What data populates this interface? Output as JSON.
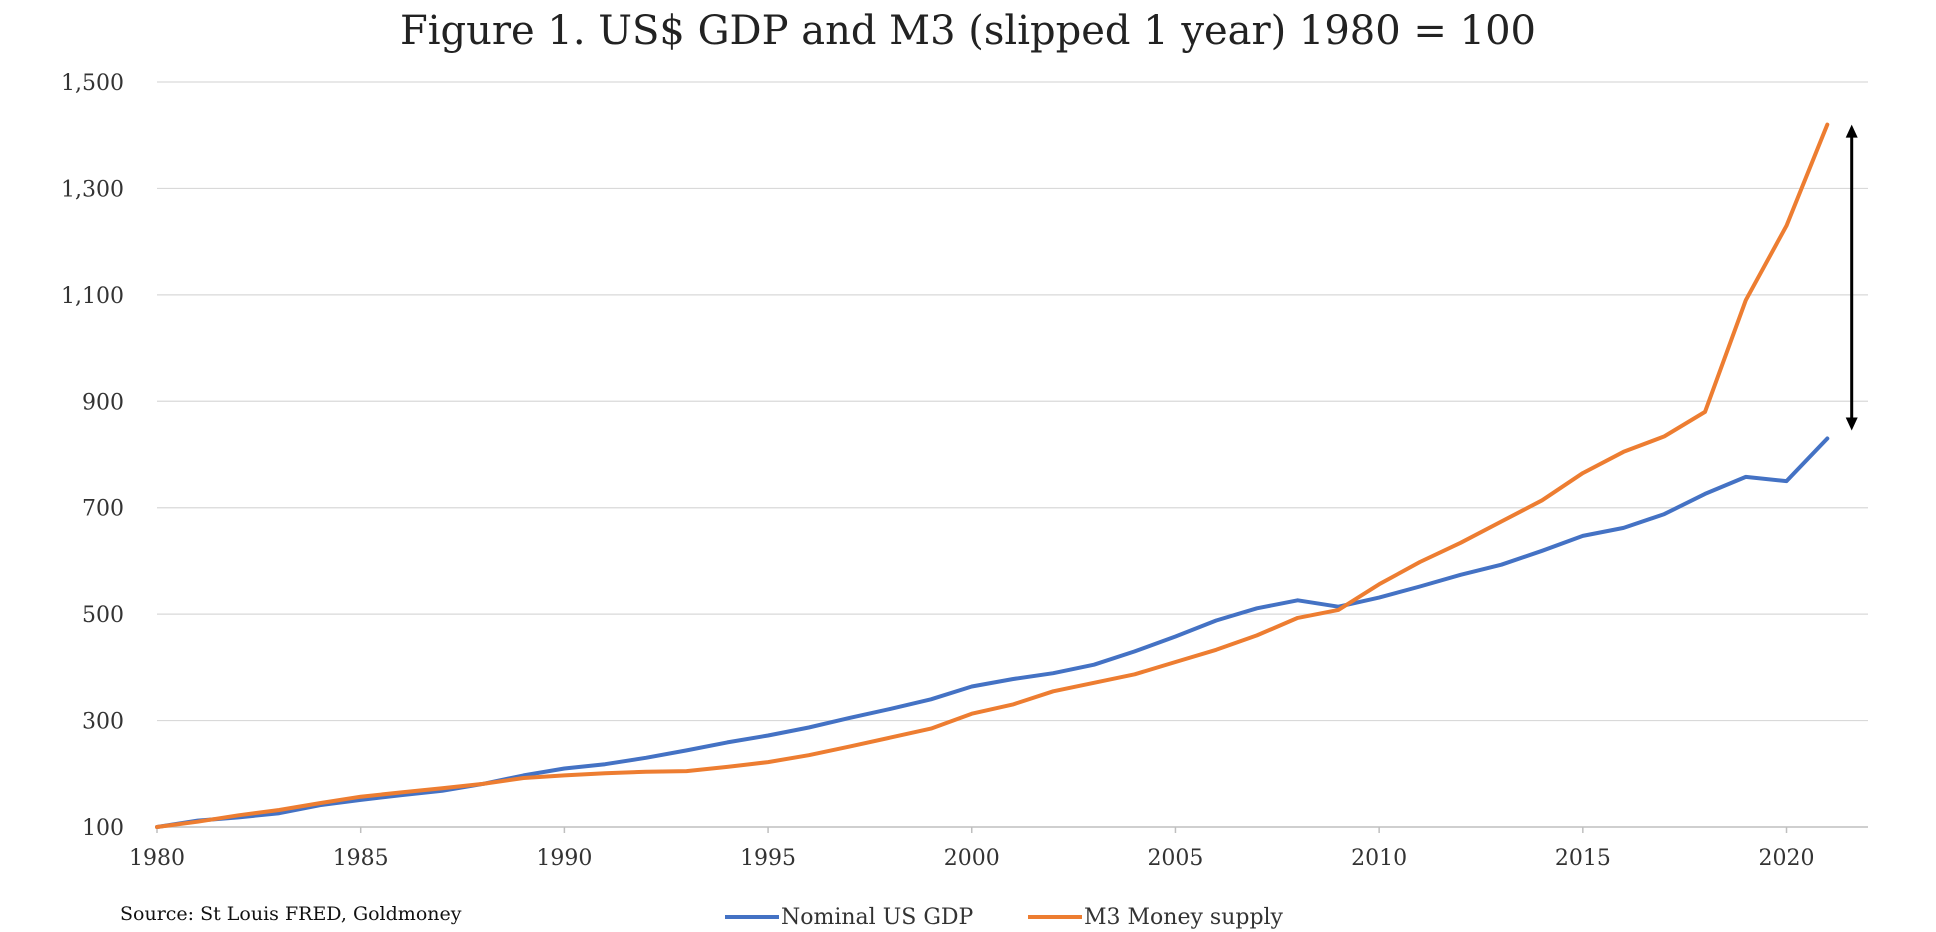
{
  "chart_data": {
    "type": "line",
    "title": "Figure 1. US$ GDP and M3 (slipped 1 year) 1980 = 100",
    "xlabel": "",
    "ylabel": "",
    "x": [
      1980,
      1981,
      1982,
      1983,
      1984,
      1985,
      1986,
      1987,
      1988,
      1989,
      1990,
      1991,
      1992,
      1993,
      1994,
      1995,
      1996,
      1997,
      1998,
      1999,
      2000,
      2001,
      2002,
      2003,
      2004,
      2005,
      2006,
      2007,
      2008,
      2009,
      2010,
      2011,
      2012,
      2013,
      2014,
      2015,
      2016,
      2017,
      2018,
      2019,
      2020,
      2021
    ],
    "xlim": [
      1980,
      2022
    ],
    "ylim": [
      100,
      1500
    ],
    "xticks": [
      "1980",
      "1985",
      "1990",
      "1995",
      "2000",
      "2005",
      "2010",
      "2015",
      "2020"
    ],
    "yticks": [
      "100",
      "300",
      "500",
      "700",
      "900",
      "1,100",
      "1,300",
      "1,500"
    ],
    "grid": true,
    "legend": "bottom",
    "series": [
      {
        "name": "Nominal US GDP",
        "color": "#4472C4",
        "values": [
          100,
          112,
          118,
          126,
          141,
          151,
          160,
          168,
          181,
          197,
          210,
          218,
          230,
          244,
          259,
          272,
          287,
          305,
          322,
          340,
          364,
          378,
          389,
          405,
          430,
          458,
          488,
          511,
          526,
          514,
          531,
          552,
          574,
          593,
          619,
          647,
          662,
          688,
          726,
          758,
          750,
          830
        ]
      },
      {
        "name": "M3 Money supply",
        "color": "#ED7D31",
        "values": [
          100,
          110,
          122,
          132,
          145,
          157,
          165,
          173,
          181,
          192,
          197,
          201,
          204,
          205,
          213,
          222,
          235,
          251,
          268,
          285,
          313,
          330,
          355,
          371,
          387,
          410,
          433,
          460,
          493,
          508,
          556,
          598,
          634,
          674,
          714,
          765,
          805,
          834,
          880,
          1090,
          1230,
          1420
        ]
      }
    ],
    "annotations": [
      {
        "type": "double-arrow",
        "x": 2021.6,
        "from": 845,
        "to": 1420,
        "color": "#000000"
      }
    ]
  },
  "footer": {
    "source": "Source: St Louis FRED, Goldmoney"
  }
}
